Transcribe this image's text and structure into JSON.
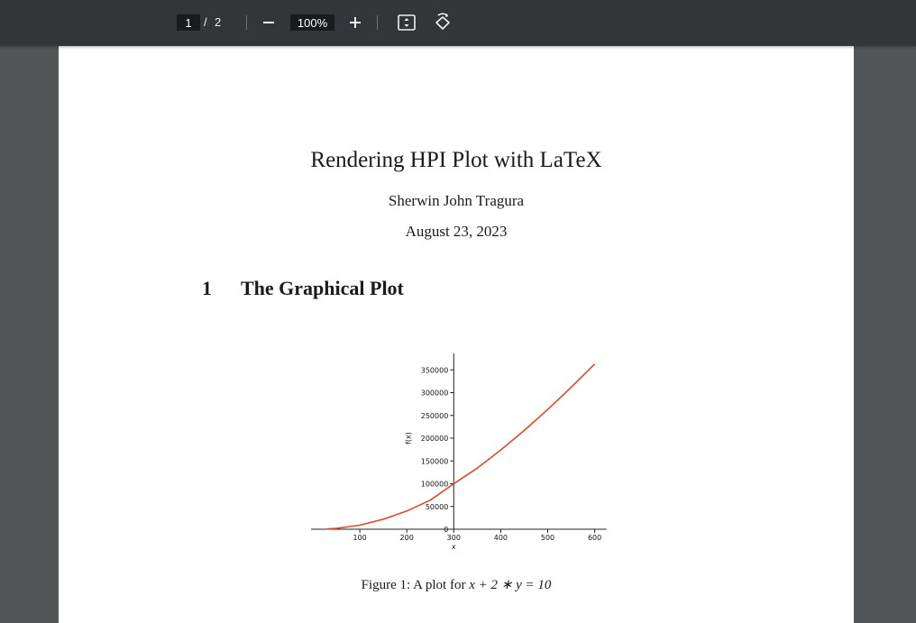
{
  "toolbar": {
    "page_current": "1",
    "page_separator": "/",
    "page_total": "2",
    "zoom": "100%",
    "icons": [
      "minus-icon",
      "plus-icon",
      "fit-to-page-icon",
      "rotate-icon"
    ]
  },
  "document": {
    "title": "Rendering HPI Plot with LaTeX",
    "author": "Sherwin John Tragura",
    "date": "August 23, 2023",
    "section": {
      "number": "1",
      "title": "The Graphical Plot"
    },
    "caption_prefix": "Figure 1: A plot for ",
    "caption_math": "x + 2 ∗ y = 10"
  },
  "chart_data": {
    "type": "line",
    "title": "",
    "xlabel": "x",
    "ylabel": "f(x)",
    "xlim": [
      0,
      625
    ],
    "ylim": [
      0,
      380000
    ],
    "xticks": [
      100,
      200,
      300,
      400,
      500,
      600
    ],
    "yticks": [
      0,
      50000,
      100000,
      150000,
      200000,
      250000,
      300000,
      350000
    ],
    "x_tick_labels": [
      "100",
      "200",
      "300",
      "400",
      "500",
      "600"
    ],
    "y_tick_labels": [
      "0",
      "50000",
      "100000",
      "150000",
      "200000",
      "250000",
      "300000",
      "350000"
    ],
    "grid": false,
    "series": [
      {
        "color": "#e0472a",
        "x": [
          30,
          50,
          100,
          150,
          200,
          250,
          300,
          350,
          400,
          450,
          500,
          550,
          600
        ],
        "y": [
          500,
          1800,
          9000,
          22000,
          40000,
          64000,
          100000,
          134000,
          174000,
          217000,
          263000,
          312000,
          363000
        ]
      }
    ]
  },
  "colors": {
    "toolbar_bg": "#323639",
    "viewer_bg": "#525659",
    "paper": "#ffffff",
    "curve": "#e0472a"
  }
}
